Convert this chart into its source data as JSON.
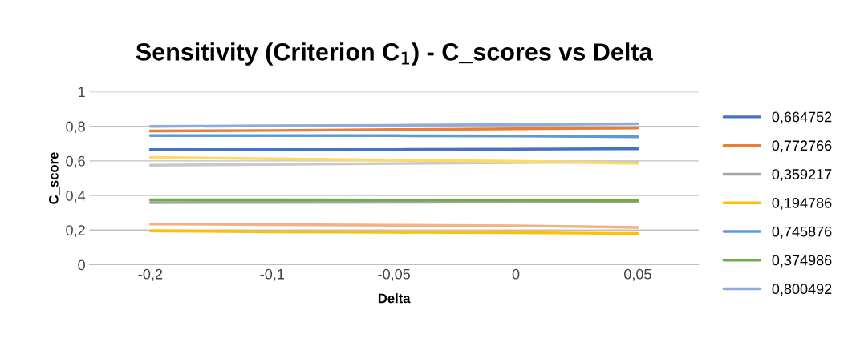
{
  "chart_data": {
    "type": "line",
    "title": "Sensitivity (Criterion C$_{1}$) - C_scores vs Delta",
    "xlabel": "Delta",
    "ylabel": "C_score",
    "categories": [
      "-0,2",
      "-0,1",
      "-0,05",
      "0",
      "0,05"
    ],
    "ylim": [
      0,
      1
    ],
    "yticks": [
      {
        "value": 0,
        "label": "0"
      },
      {
        "value": 0.2,
        "label": "0,2"
      },
      {
        "value": 0.4,
        "label": "0,4"
      },
      {
        "value": 0.6,
        "label": "0,6"
      },
      {
        "value": 0.8,
        "label": "0,8"
      },
      {
        "value": 1,
        "label": "1"
      }
    ],
    "grid": "y",
    "legend": "right",
    "marker": "none",
    "line_style": "solid",
    "series": [
      {
        "name": "0,664752",
        "color": "#4472c4",
        "values": [
          0.665,
          0.665,
          0.666,
          0.668,
          0.67
        ]
      },
      {
        "name": "0,772766",
        "color": "#ed7d31",
        "values": [
          0.773,
          0.776,
          0.781,
          0.786,
          0.79
        ]
      },
      {
        "name": "0,359217",
        "color": "#a5a5a5",
        "values": [
          0.359,
          0.36,
          0.361,
          0.362,
          0.362
        ]
      },
      {
        "name": "0,194786",
        "color": "#ffc000",
        "values": [
          0.195,
          0.19,
          0.187,
          0.185,
          0.18
        ]
      },
      {
        "name": "0,745876",
        "color": "#5b9bd5",
        "values": [
          0.746,
          0.746,
          0.746,
          0.744,
          0.74
        ]
      },
      {
        "name": "0,374986",
        "color": "#70ad47",
        "values": [
          0.375,
          0.375,
          0.374,
          0.373,
          0.37
        ]
      },
      {
        "name": "0,800492",
        "color": "#8faadc",
        "values": [
          0.8,
          0.803,
          0.806,
          0.81,
          0.815
        ]
      },
      {
        "color": "#f4b183",
        "values": [
          0.235,
          0.231,
          0.228,
          0.225,
          0.215
        ]
      },
      {
        "color": "#c9c9c9",
        "values": [
          0.575,
          0.58,
          0.585,
          0.59,
          0.595
        ]
      },
      {
        "color": "#ffd966",
        "values": [
          0.62,
          0.612,
          0.605,
          0.598,
          0.585
        ]
      }
    ]
  }
}
